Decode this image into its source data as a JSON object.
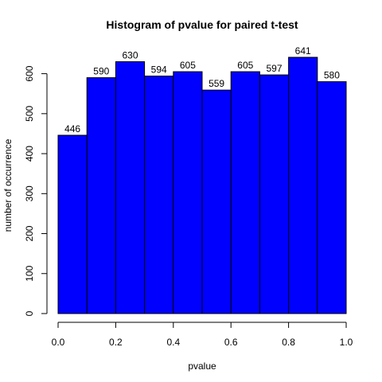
{
  "chart_data": {
    "type": "bar",
    "title": "Histogram of pvalue for paired t-test",
    "xlabel": "pvalue",
    "ylabel": "number of occurrence",
    "bins": [
      {
        "start": 0.0,
        "end": 0.1,
        "value": 446,
        "label": "446"
      },
      {
        "start": 0.1,
        "end": 0.2,
        "value": 590,
        "label": "590"
      },
      {
        "start": 0.2,
        "end": 0.3,
        "value": 630,
        "label": "630"
      },
      {
        "start": 0.3,
        "end": 0.4,
        "value": 594,
        "label": "594"
      },
      {
        "start": 0.4,
        "end": 0.5,
        "value": 605,
        "label": "605"
      },
      {
        "start": 0.5,
        "end": 0.6,
        "value": 559,
        "label": "559"
      },
      {
        "start": 0.6,
        "end": 0.7,
        "value": 605,
        "label": "605"
      },
      {
        "start": 0.7,
        "end": 0.8,
        "value": 597,
        "label": "597"
      },
      {
        "start": 0.8,
        "end": 0.9,
        "value": 641,
        "label": "641"
      },
      {
        "start": 0.9,
        "end": 1.0,
        "value": 580,
        "label": "580"
      }
    ],
    "xlim": [
      0,
      1
    ],
    "ylim": [
      0,
      641
    ],
    "xticks": [
      {
        "value": 0.0,
        "label": "0.0"
      },
      {
        "value": 0.2,
        "label": "0.2"
      },
      {
        "value": 0.4,
        "label": "0.4"
      },
      {
        "value": 0.6,
        "label": "0.6"
      },
      {
        "value": 0.8,
        "label": "0.8"
      },
      {
        "value": 1.0,
        "label": "1.0"
      }
    ],
    "yticks": [
      {
        "value": 0,
        "label": "0"
      },
      {
        "value": 100,
        "label": "100"
      },
      {
        "value": 200,
        "label": "200"
      },
      {
        "value": 300,
        "label": "300"
      },
      {
        "value": 400,
        "label": "400"
      },
      {
        "value": 500,
        "label": "500"
      },
      {
        "value": 600,
        "label": "600"
      }
    ],
    "grid": false,
    "legend": "none",
    "bar_color": "#0000ff",
    "bar_edge_color": "#000000"
  }
}
